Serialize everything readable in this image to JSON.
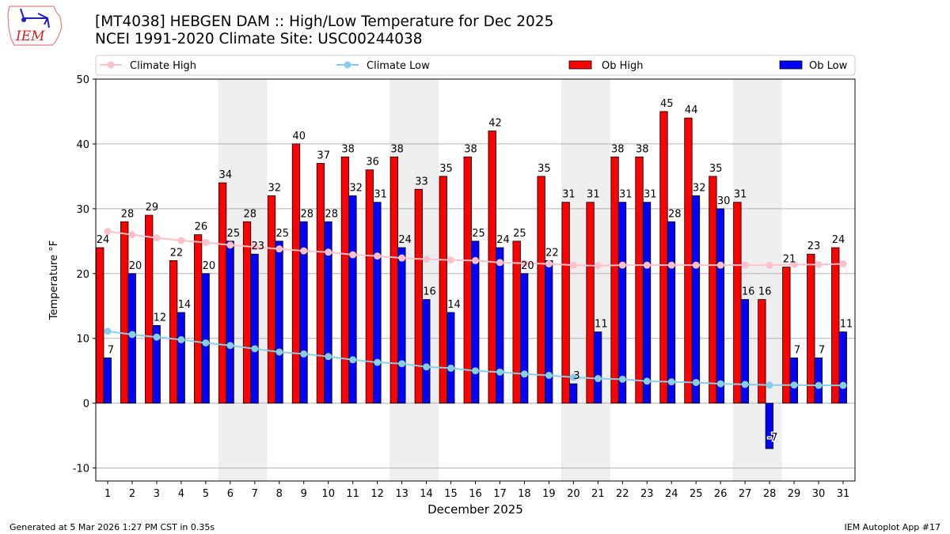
{
  "logo": {
    "text": "IEM"
  },
  "title_line1": "[MT4038] HEBGEN DAM :: High/Low Temperature for Dec 2025",
  "title_line2": "NCEI 1991-2020 Climate Site: USC00244038",
  "footer_left": "Generated at 5 Mar 2026 1:27 PM CST in 0.35s",
  "footer_right": "IEM Autoplot App #17",
  "chart_data": {
    "type": "bar",
    "xlabel": "December 2025",
    "ylabel": "Temperature °F",
    "ylim": [
      -12,
      50
    ],
    "yticks": [
      -10,
      0,
      10,
      20,
      30,
      40,
      50
    ],
    "grid": true,
    "legend_placement": "top",
    "weekend_shading": [
      6,
      7,
      13,
      14,
      20,
      21,
      27,
      28
    ],
    "x": [
      1,
      2,
      3,
      4,
      5,
      6,
      7,
      8,
      9,
      10,
      11,
      12,
      13,
      14,
      15,
      16,
      17,
      18,
      19,
      20,
      21,
      22,
      23,
      24,
      25,
      26,
      27,
      28,
      29,
      30,
      31
    ],
    "series": [
      {
        "name": "Climate High",
        "kind": "line",
        "color": "#ffc0cb",
        "values": [
          26.5,
          26.0,
          25.5,
          25.1,
          24.8,
          24.4,
          24.1,
          23.8,
          23.5,
          23.3,
          22.9,
          22.7,
          22.4,
          22.2,
          22.1,
          22.0,
          21.7,
          21.6,
          21.5,
          21.3,
          21.2,
          21.3,
          21.3,
          21.3,
          21.3,
          21.3,
          21.3,
          21.3,
          21.4,
          21.4,
          21.5
        ]
      },
      {
        "name": "Climate Low",
        "kind": "line",
        "color": "#87ceeb",
        "values": [
          11.1,
          10.6,
          10.2,
          9.8,
          9.3,
          8.9,
          8.4,
          7.9,
          7.6,
          7.2,
          6.7,
          6.3,
          6.1,
          5.6,
          5.4,
          5.0,
          4.8,
          4.5,
          4.3,
          4.0,
          3.8,
          3.7,
          3.4,
          3.3,
          3.2,
          3.0,
          2.9,
          2.8,
          2.8,
          2.75,
          2.75
        ]
      },
      {
        "name": "Ob High",
        "kind": "bar",
        "color": "#ff0000",
        "values": [
          24,
          28,
          29,
          22,
          26,
          34,
          28,
          32,
          40,
          37,
          38,
          36,
          38,
          33,
          35,
          38,
          42,
          25,
          35,
          31,
          31,
          38,
          38,
          45,
          44,
          35,
          31,
          16,
          21,
          23,
          24
        ]
      },
      {
        "name": "Ob Low",
        "kind": "bar",
        "color": "#0000ff",
        "values": [
          7,
          20,
          12,
          14,
          20,
          25,
          23,
          25,
          28,
          28,
          32,
          31,
          24,
          16,
          14,
          25,
          24,
          20,
          22,
          3,
          11,
          31,
          31,
          28,
          32,
          30,
          16,
          -7,
          7,
          7,
          11
        ]
      }
    ]
  }
}
